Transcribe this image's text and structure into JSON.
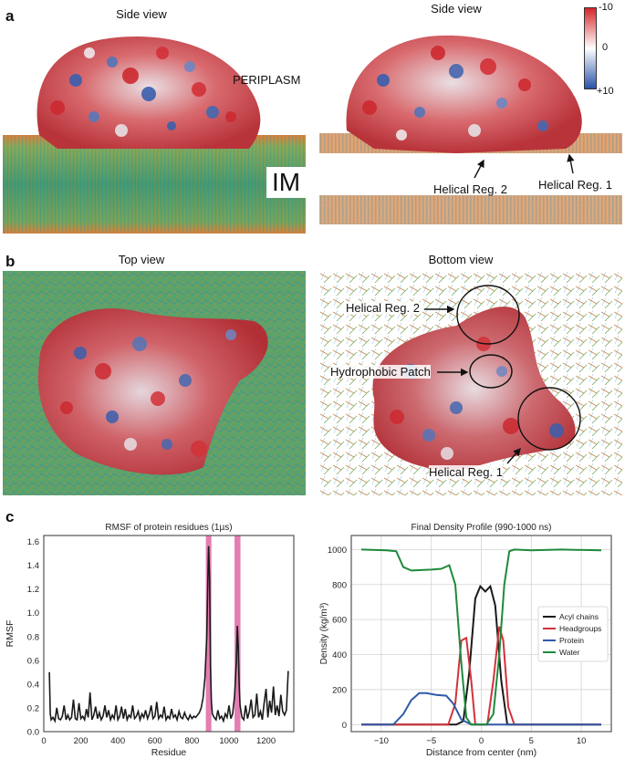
{
  "panels": {
    "a": {
      "letter": "a",
      "left_title": "Side view",
      "right_title": "Side view",
      "periplasm_label": "PERIPLASM",
      "im_label": "IM",
      "helical_reg_2": "Helical Reg. 2",
      "helical_reg_1": "Helical Reg. 1",
      "colorbar": {
        "top_label": "-10",
        "mid_label": "0",
        "bottom_label": "+10",
        "colors": [
          "#d7262b",
          "#ffffff",
          "#2a53a8"
        ]
      }
    },
    "b": {
      "letter": "b",
      "left_title": "Top view",
      "right_title": "Bottom view",
      "helical_reg_2": "Helical Reg. 2",
      "hydrophobic_patch": "Hydrophobic Patch",
      "helical_reg_1": "Helical Reg. 1"
    },
    "c": {
      "letter": "c"
    }
  },
  "chart_data": [
    {
      "type": "line",
      "title": "RMSF of protein residues (1µs)",
      "xlabel": "Residue",
      "ylabel": "RMSF",
      "xlim": [
        0,
        1350
      ],
      "ylim": [
        0,
        1.65
      ],
      "xticks": [
        "0",
        "200",
        "400",
        "600",
        "800",
        "1000",
        "1200"
      ],
      "yticks": [
        "0.0",
        "0.2",
        "0.4",
        "0.6",
        "0.8",
        "1.0",
        "1.2",
        "1.4",
        "1.6"
      ],
      "highlight_bands": [
        [
          875,
          905
        ],
        [
          1030,
          1062
        ]
      ],
      "highlight_color": "#e066a6",
      "series": [
        {
          "color": "#1a1a1a",
          "x": [
            30,
            35,
            40,
            50,
            60,
            70,
            80,
            90,
            100,
            110,
            120,
            130,
            140,
            150,
            160,
            170,
            180,
            190,
            200,
            210,
            220,
            230,
            240,
            250,
            260,
            270,
            280,
            290,
            300,
            310,
            320,
            330,
            340,
            350,
            360,
            370,
            380,
            390,
            400,
            410,
            420,
            430,
            440,
            450,
            460,
            470,
            480,
            490,
            500,
            510,
            520,
            530,
            540,
            550,
            560,
            570,
            580,
            590,
            600,
            610,
            620,
            630,
            640,
            650,
            660,
            670,
            680,
            690,
            700,
            710,
            720,
            730,
            740,
            750,
            760,
            770,
            780,
            790,
            800,
            810,
            820,
            830,
            840,
            850,
            860,
            870,
            880,
            885,
            890,
            895,
            900,
            905,
            910,
            920,
            930,
            940,
            950,
            960,
            970,
            980,
            990,
            1000,
            1010,
            1020,
            1030,
            1040,
            1045,
            1050,
            1055,
            1060,
            1070,
            1080,
            1090,
            1100,
            1110,
            1120,
            1130,
            1140,
            1150,
            1160,
            1170,
            1180,
            1190,
            1200,
            1210,
            1220,
            1230,
            1240,
            1250,
            1260,
            1270,
            1280,
            1290,
            1300,
            1310,
            1320
          ],
          "y": [
            0.5,
            0.15,
            0.1,
            0.12,
            0.09,
            0.2,
            0.11,
            0.1,
            0.13,
            0.22,
            0.1,
            0.14,
            0.1,
            0.12,
            0.27,
            0.11,
            0.1,
            0.24,
            0.11,
            0.13,
            0.1,
            0.19,
            0.12,
            0.33,
            0.1,
            0.14,
            0.21,
            0.11,
            0.16,
            0.1,
            0.13,
            0.22,
            0.12,
            0.18,
            0.1,
            0.14,
            0.11,
            0.22,
            0.1,
            0.13,
            0.21,
            0.11,
            0.19,
            0.1,
            0.14,
            0.12,
            0.22,
            0.11,
            0.13,
            0.17,
            0.1,
            0.15,
            0.12,
            0.18,
            0.11,
            0.15,
            0.22,
            0.11,
            0.13,
            0.25,
            0.11,
            0.14,
            0.12,
            0.21,
            0.1,
            0.13,
            0.11,
            0.19,
            0.12,
            0.14,
            0.1,
            0.17,
            0.12,
            0.11,
            0.16,
            0.12,
            0.1,
            0.14,
            0.11,
            0.13,
            0.12,
            0.14,
            0.16,
            0.2,
            0.28,
            0.45,
            0.8,
            1.2,
            1.56,
            1.3,
            0.55,
            0.25,
            0.15,
            0.12,
            0.1,
            0.18,
            0.11,
            0.13,
            0.09,
            0.15,
            0.12,
            0.22,
            0.11,
            0.15,
            0.3,
            0.6,
            0.89,
            0.72,
            0.4,
            0.22,
            0.12,
            0.1,
            0.22,
            0.11,
            0.17,
            0.27,
            0.12,
            0.14,
            0.32,
            0.12,
            0.17,
            0.1,
            0.24,
            0.36,
            0.12,
            0.26,
            0.16,
            0.38,
            0.14,
            0.22,
            0.13,
            0.31,
            0.17,
            0.14,
            0.18,
            0.51
          ]
        }
      ]
    },
    {
      "type": "line",
      "title": "Final Density Profile (990-1000 ns)",
      "xlabel": "Distance from center (nm)",
      "ylabel": "Density (kg/m³)",
      "xlim": [
        -13,
        13
      ],
      "ylim": [
        -40,
        1080
      ],
      "xticks": [
        "−10",
        "−5",
        "0",
        "5",
        "10"
      ],
      "xtick_values": [
        -10,
        -5,
        0,
        5,
        10
      ],
      "yticks": [
        "0",
        "200",
        "400",
        "600",
        "800",
        "1000"
      ],
      "ytick_values": [
        0,
        200,
        400,
        600,
        800,
        1000
      ],
      "legend_position": "right",
      "series": [
        {
          "name": "Acyl chains",
          "color": "#1a1a1a",
          "x": [
            -12,
            -2.5,
            -1.8,
            -1.2,
            -0.6,
            -0.1,
            0.4,
            0.9,
            1.4,
            2.0,
            2.6,
            12
          ],
          "y": [
            0,
            0,
            20,
            300,
            720,
            790,
            760,
            790,
            680,
            250,
            0,
            0
          ]
        },
        {
          "name": "Headgroups",
          "color": "#d2323a",
          "x": [
            -12,
            -3.3,
            -2.6,
            -2.0,
            -1.5,
            -1.0,
            -0.6,
            0.6,
            1.2,
            1.8,
            2.2,
            2.7,
            3.3,
            12
          ],
          "y": [
            0,
            0,
            120,
            480,
            495,
            250,
            0,
            0,
            250,
            560,
            480,
            100,
            0,
            0
          ],
          "note": ""
        },
        {
          "name": "Protein",
          "color": "#2f5aa8",
          "x": [
            -12,
            -8.8,
            -7.8,
            -7.0,
            -6.2,
            -5.5,
            -4.5,
            -3.5,
            -2.8,
            -2.0,
            -1.0,
            12
          ],
          "y": [
            0,
            0,
            60,
            140,
            180,
            180,
            170,
            165,
            120,
            30,
            0,
            0
          ]
        },
        {
          "name": "Water",
          "color": "#1e8a3c",
          "x": [
            -12,
            -9.5,
            -8.5,
            -7.8,
            -7.0,
            -5.0,
            -4.0,
            -3.2,
            -2.6,
            -2.0,
            -1.5,
            -1.0,
            0.5,
            1.2,
            1.8,
            2.3,
            2.8,
            3.3,
            5.0,
            8.0,
            12
          ],
          "y": [
            1000,
            995,
            990,
            900,
            880,
            885,
            890,
            910,
            800,
            350,
            40,
            0,
            0,
            60,
            400,
            800,
            990,
            1000,
            995,
            1000,
            995
          ]
        }
      ]
    }
  ]
}
